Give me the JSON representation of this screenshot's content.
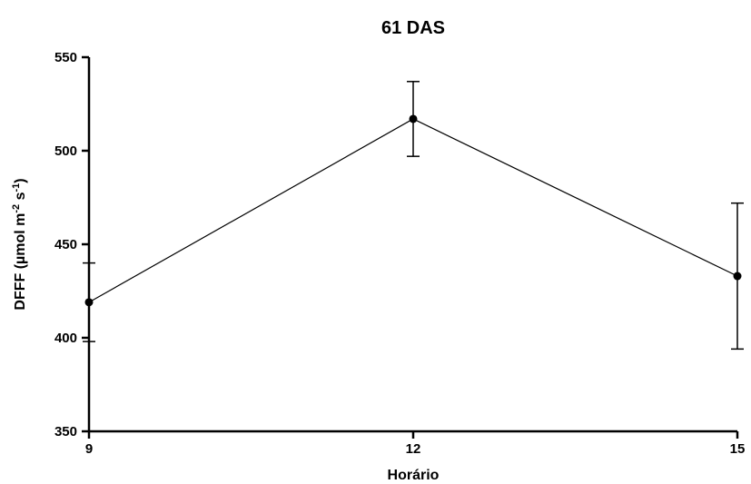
{
  "chart_data": {
    "type": "line",
    "title": "61 DAS",
    "xlabel": "Horário",
    "ylabel": {
      "prefix": "DFFF (µmol m",
      "sup1": "-2",
      "mid": " s",
      "sup2": "-1",
      "suffix": ")"
    },
    "x": [
      9,
      12,
      15
    ],
    "x_ticks": [
      "9",
      "12",
      "15"
    ],
    "xlim": [
      9,
      15
    ],
    "y_ticks": [
      350,
      400,
      450,
      500,
      550
    ],
    "ylim": [
      350,
      550
    ],
    "grid": false,
    "series": [
      {
        "values": [
          419,
          517,
          433
        ],
        "error": [
          21,
          20,
          39
        ],
        "color": "#000000",
        "marker": "circle"
      }
    ]
  }
}
